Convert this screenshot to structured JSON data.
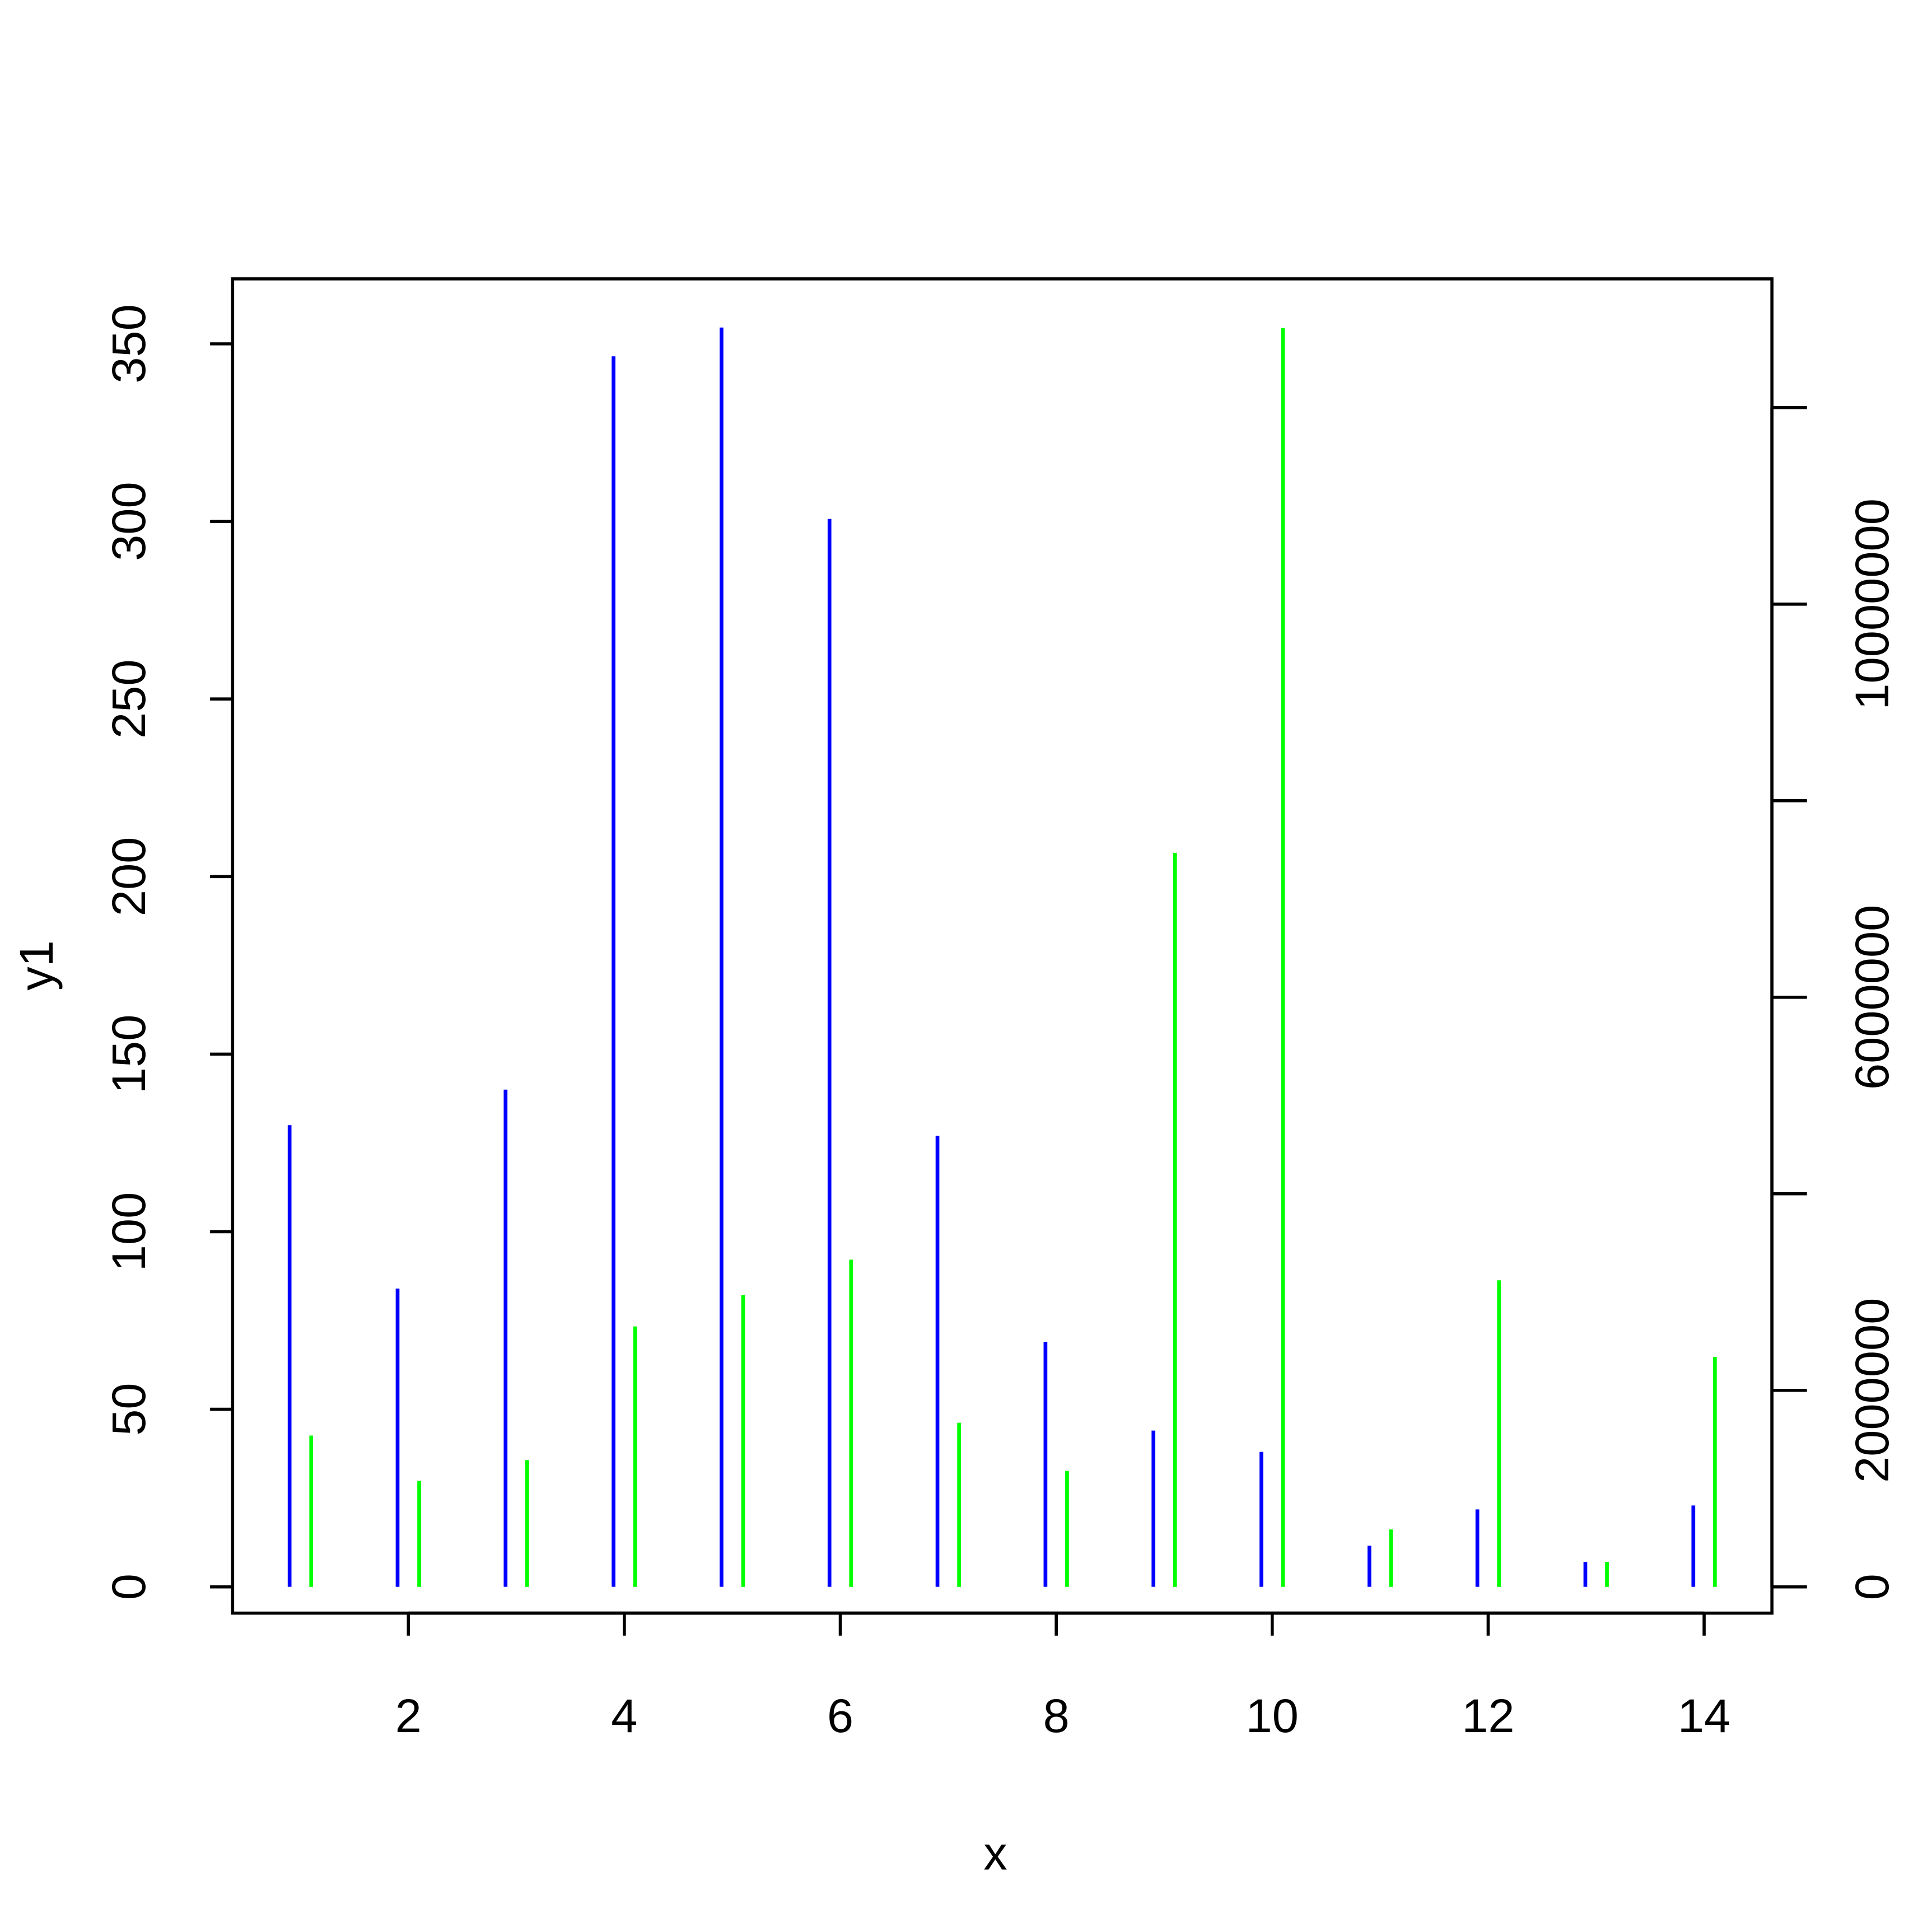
{
  "chart_data": {
    "type": "spike",
    "xlabel": "x",
    "ylabel": "y1",
    "xlim": [
      0.372,
      14.628
    ],
    "xticks": [
      2,
      4,
      6,
      8,
      10,
      12,
      14
    ],
    "ylim": [
      -7.4,
      368.3
    ],
    "yticks": [
      0,
      50,
      100,
      150,
      200,
      250,
      300,
      350
    ],
    "y2lim": [
      -267000,
      13310000
    ],
    "y2ticks": [
      0,
      2000000,
      6000000,
      10000000
    ],
    "y2tick_marks": [
      0,
      2000000,
      4000000,
      6000000,
      8000000,
      10000000,
      12000000
    ],
    "series": [
      {
        "color": "#0000ff",
        "x": [
          0.9,
          1.9,
          2.9,
          3.9,
          4.9,
          5.9,
          6.9,
          7.9,
          8.9,
          9.9,
          10.9,
          11.9,
          12.9,
          13.9
        ],
        "values": [
          130,
          84,
          140,
          346.5,
          354.6,
          300.7,
          127,
          69,
          44,
          38,
          11.6,
          21.8,
          7,
          22.9
        ]
      },
      {
        "color": "#00ff00",
        "axis": "y2",
        "x": [
          1.1,
          2.1,
          3.1,
          4.1,
          5.1,
          6.1,
          7.1,
          8.1,
          9.1,
          10.1,
          11.1,
          12.1,
          13.1,
          14.1
        ],
        "values": [
          1540000,
          1080000,
          1290000,
          2650000,
          2970000,
          3330000,
          1670000,
          1180000,
          7470000,
          12810000,
          585000,
          3120000,
          255000,
          2340000
        ]
      }
    ]
  }
}
